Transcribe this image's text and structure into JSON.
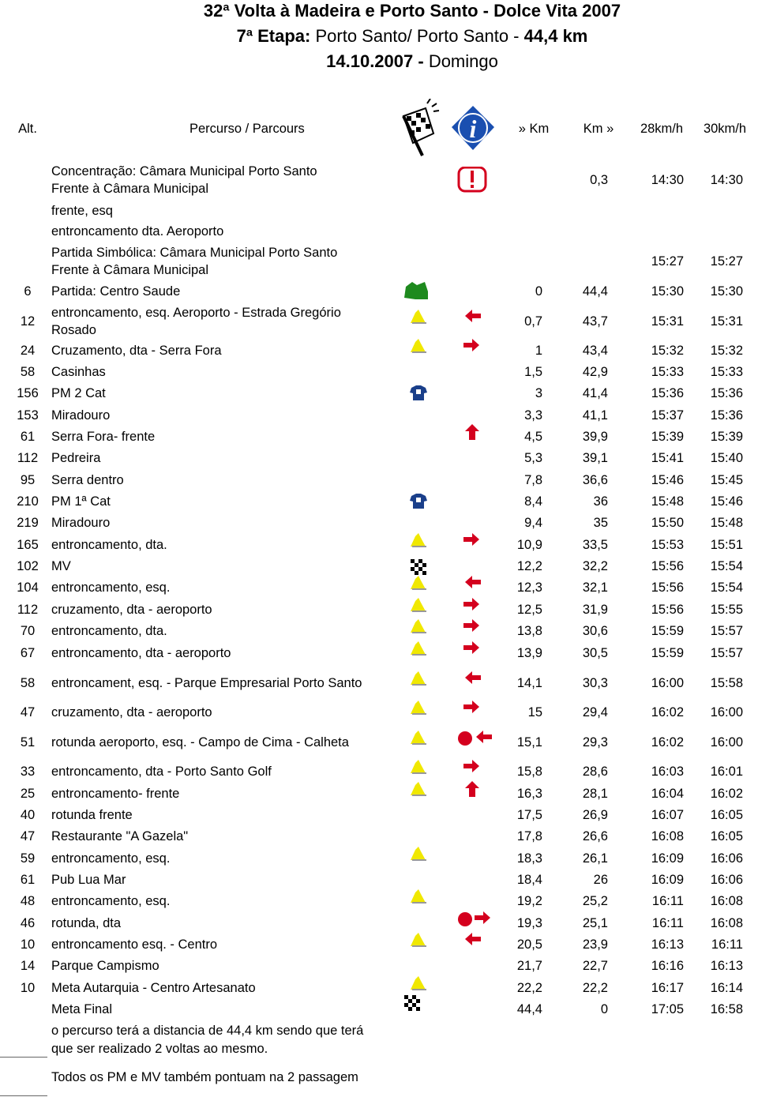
{
  "header": {
    "title": "32ª Volta à Madeira e Porto Santo - Dolce Vita 2007",
    "stage": [
      "7ª Etapa:",
      "Porto Santo/ Porto Santo -",
      "44,4 km"
    ],
    "date": [
      "14.10.2007 -",
      "Domingo"
    ]
  },
  "columns": [
    "Alt.",
    "Percurso / Parcours",
    "» Km",
    "Km »",
    "28km/h",
    "30km/h"
  ],
  "rows": [
    {
      "route": [
        "Concentração: Câmara Municipal Porto Santo",
        "Frente à Câmara Municipal"
      ],
      "to": "0,3",
      "t28": "14:30",
      "t30": "14:30"
    },
    {
      "route": [
        "frente, esq"
      ]
    },
    {
      "route": [
        "entroncamento dta. Aeroporto"
      ]
    },
    {
      "route": [
        "Partida Simbólica: Câmara Municipal Porto Santo",
        "Frente à Câmara Municipal"
      ],
      "t28": "15:27",
      "t30": "15:27"
    },
    {
      "alt": "6",
      "route": [
        "Partida: Centro Saude"
      ],
      "from": "0",
      "to": "44,4",
      "t28": "15:30",
      "t30": "15:30"
    },
    {
      "alt": "12",
      "route": [
        "entroncamento, esq. Aeroporto - Estrada Gregório",
        "Rosado"
      ],
      "from": "0,7",
      "to": "43,7",
      "t28": "15:31",
      "t30": "15:31"
    },
    {
      "alt": "24",
      "route": [
        "Cruzamento, dta - Serra Fora"
      ],
      "from": "1",
      "to": "43,4",
      "t28": "15:32",
      "t30": "15:32"
    },
    {
      "alt": "58",
      "route": [
        "Casinhas"
      ],
      "from": "1,5",
      "to": "42,9",
      "t28": "15:33",
      "t30": "15:33"
    },
    {
      "alt": "156",
      "route": [
        "PM 2 Cat"
      ],
      "from": "3",
      "to": "41,4",
      "t28": "15:36",
      "t30": "15:36"
    },
    {
      "alt": "153",
      "route": [
        "Miradouro"
      ],
      "from": "3,3",
      "to": "41,1",
      "t28": "15:37",
      "t30": "15:36"
    },
    {
      "alt": "61",
      "route": [
        "Serra Fora- frente"
      ],
      "from": "4,5",
      "to": "39,9",
      "t28": "15:39",
      "t30": "15:39"
    },
    {
      "alt": "112",
      "route": [
        "Pedreira"
      ],
      "from": "5,3",
      "to": "39,1",
      "t28": "15:41",
      "t30": "15:40"
    },
    {
      "alt": "95",
      "route": [
        "Serra dentro"
      ],
      "from": "7,8",
      "to": "36,6",
      "t28": "15:46",
      "t30": "15:45"
    },
    {
      "alt": "210",
      "route": [
        "PM 1ª Cat"
      ],
      "from": "8,4",
      "to": "36",
      "t28": "15:48",
      "t30": "15:46"
    },
    {
      "alt": "219",
      "route": [
        "Miradouro"
      ],
      "from": "9,4",
      "to": "35",
      "t28": "15:50",
      "t30": "15:48"
    },
    {
      "alt": "165",
      "route": [
        "entroncamento, dta."
      ],
      "from": "10,9",
      "to": "33,5",
      "t28": "15:53",
      "t30": "15:51"
    },
    {
      "alt": "102",
      "route": [
        "MV"
      ],
      "from": "12,2",
      "to": "32,2",
      "t28": "15:56",
      "t30": "15:54"
    },
    {
      "alt": "104",
      "route": [
        "entroncamento, esq."
      ],
      "from": "12,3",
      "to": "32,1",
      "t28": "15:56",
      "t30": "15:54"
    },
    {
      "alt": "112",
      "route": [
        "cruzamento, dta - aeroporto"
      ],
      "from": "12,5",
      "to": "31,9",
      "t28": "15:56",
      "t30": "15:55"
    },
    {
      "alt": "70",
      "route": [
        "entroncamento, dta."
      ],
      "from": "13,8",
      "to": "30,6",
      "t28": "15:59",
      "t30": "15:57"
    },
    {
      "alt": "67",
      "route": [
        "entroncamento, dta - aeroporto"
      ],
      "from": "13,9",
      "to": "30,5",
      "t28": "15:59",
      "t30": "15:57"
    },
    {
      "alt": "58",
      "route": [
        "entroncament, esq. - Parque Empresarial Porto Santo"
      ],
      "from": "14,1",
      "to": "30,3",
      "t28": "16:00",
      "t30": "15:58"
    },
    {
      "alt": "47",
      "route": [
        "cruzamento, dta - aeroporto"
      ],
      "from": "15",
      "to": "29,4",
      "t28": "16:02",
      "t30": "16:00"
    },
    {
      "alt": "51",
      "route": [
        "rotunda aeroporto, esq. - Campo de Cima - Calheta"
      ],
      "from": "15,1",
      "to": "29,3",
      "t28": "16:02",
      "t30": "16:00"
    },
    {
      "alt": "33",
      "route": [
        "entroncamento, dta - Porto Santo Golf"
      ],
      "from": "15,8",
      "to": "28,6",
      "t28": "16:03",
      "t30": "16:01"
    },
    {
      "alt": "25",
      "route": [
        "entroncamento- frente"
      ],
      "from": "16,3",
      "to": "28,1",
      "t28": "16:04",
      "t30": "16:02"
    },
    {
      "alt": "40",
      "route": [
        "rotunda frente"
      ],
      "from": "17,5",
      "to": "26,9",
      "t28": "16:07",
      "t30": "16:05"
    },
    {
      "alt": "47",
      "route": [
        "Restaurante \"A Gazela\""
      ],
      "from": "17,8",
      "to": "26,6",
      "t28": "16:08",
      "t30": "16:05"
    },
    {
      "alt": "59",
      "route": [
        "entroncamento, esq."
      ],
      "from": "18,3",
      "to": "26,1",
      "t28": "16:09",
      "t30": "16:06"
    },
    {
      "alt": "61",
      "route": [
        "Pub Lua Mar"
      ],
      "from": "18,4",
      "to": "26",
      "t28": "16:09",
      "t30": "16:06"
    },
    {
      "alt": "48",
      "route": [
        "entroncamento, esq."
      ],
      "from": "19,2",
      "to": "25,2",
      "t28": "16:11",
      "t30": "16:08"
    },
    {
      "alt": "46",
      "route": [
        "rotunda, dta"
      ],
      "from": "19,3",
      "to": "25,1",
      "t28": "16:11",
      "t30": "16:08"
    },
    {
      "alt": "10",
      "route": [
        "entroncamento esq. - Centro"
      ],
      "from": "20,5",
      "to": "23,9",
      "t28": "16:13",
      "t30": "16:11"
    },
    {
      "alt": "14",
      "route": [
        "Parque Campismo"
      ],
      "from": "21,7",
      "to": "22,7",
      "t28": "16:16",
      "t30": "16:13"
    },
    {
      "alt": "10",
      "route": [
        "Meta Autarquia - Centro Artesanato"
      ],
      "from": "22,2",
      "to": "22,2",
      "t28": "16:17",
      "t30": "16:14"
    },
    {
      "route": [
        "Meta Final"
      ],
      "from": "44,4",
      "to": "0",
      "t28": "17:05",
      "t30": "16:58"
    }
  ],
  "notes": {
    "distance": [
      "o percurso terá a distancia de 44,4 km sendo que terá",
      "que ser realizado 2 voltas ao mesmo."
    ],
    "points": "Todos os PM e MV também pontuam na 2 passagem"
  }
}
